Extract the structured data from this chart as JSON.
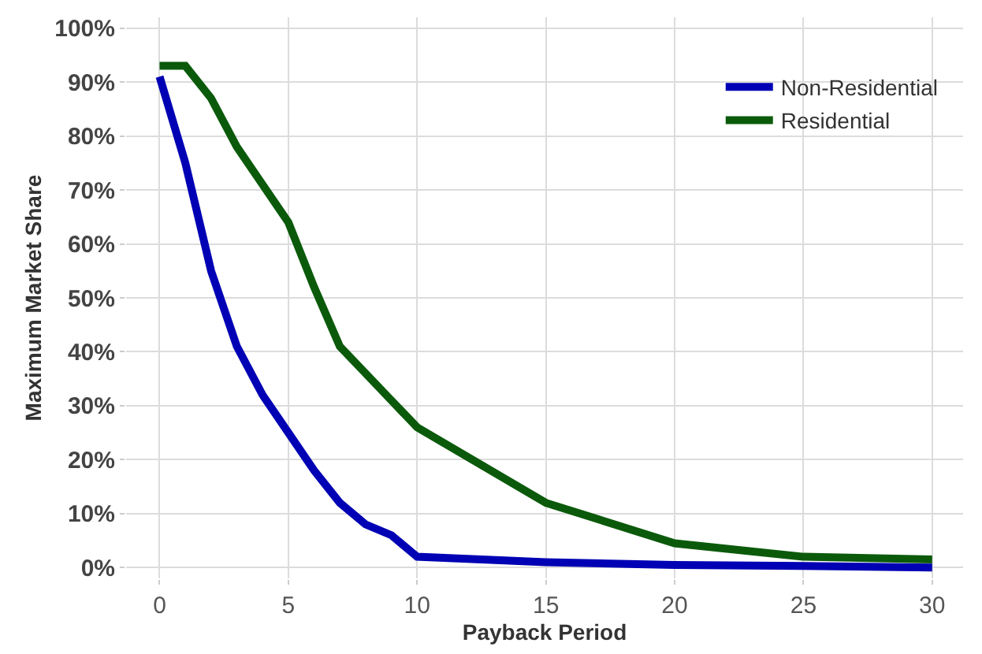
{
  "chart_data": {
    "type": "line",
    "xlabel": "Payback Period",
    "ylabel": "Maximum Market Share",
    "x": [
      0,
      1,
      2,
      3,
      4,
      5,
      6,
      7,
      8,
      9,
      10,
      15,
      20,
      25,
      30
    ],
    "series": [
      {
        "name": "Non-Residential",
        "color": "#0000b4",
        "values": [
          91,
          75,
          55,
          41,
          32,
          25,
          18,
          12,
          8,
          6,
          2,
          1,
          0.5,
          0.3,
          0
        ]
      },
      {
        "name": "Residential",
        "color": "#0b5a0b",
        "values": [
          93,
          93,
          87,
          78,
          71,
          64,
          52,
          41,
          36,
          31,
          26,
          12,
          4.5,
          2,
          1.5
        ]
      }
    ],
    "xlim": [
      -1.3,
      31.2
    ],
    "ylim": [
      -2,
      102
    ],
    "xticks": [
      0,
      5,
      10,
      15,
      20,
      25,
      30
    ],
    "yticks": [
      {
        "value": 0,
        "label": "0%"
      },
      {
        "value": 10,
        "label": "10%"
      },
      {
        "value": 20,
        "label": "20%"
      },
      {
        "value": 30,
        "label": "30%"
      },
      {
        "value": 40,
        "label": "40%"
      },
      {
        "value": 50,
        "label": "50%"
      },
      {
        "value": 60,
        "label": "60%"
      },
      {
        "value": 70,
        "label": "70%"
      },
      {
        "value": 80,
        "label": "80%"
      },
      {
        "value": 90,
        "label": "90%"
      },
      {
        "value": 100,
        "label": "100%"
      }
    ],
    "grid": true,
    "legend": "top right",
    "marker": "none",
    "line_style": "solid"
  }
}
